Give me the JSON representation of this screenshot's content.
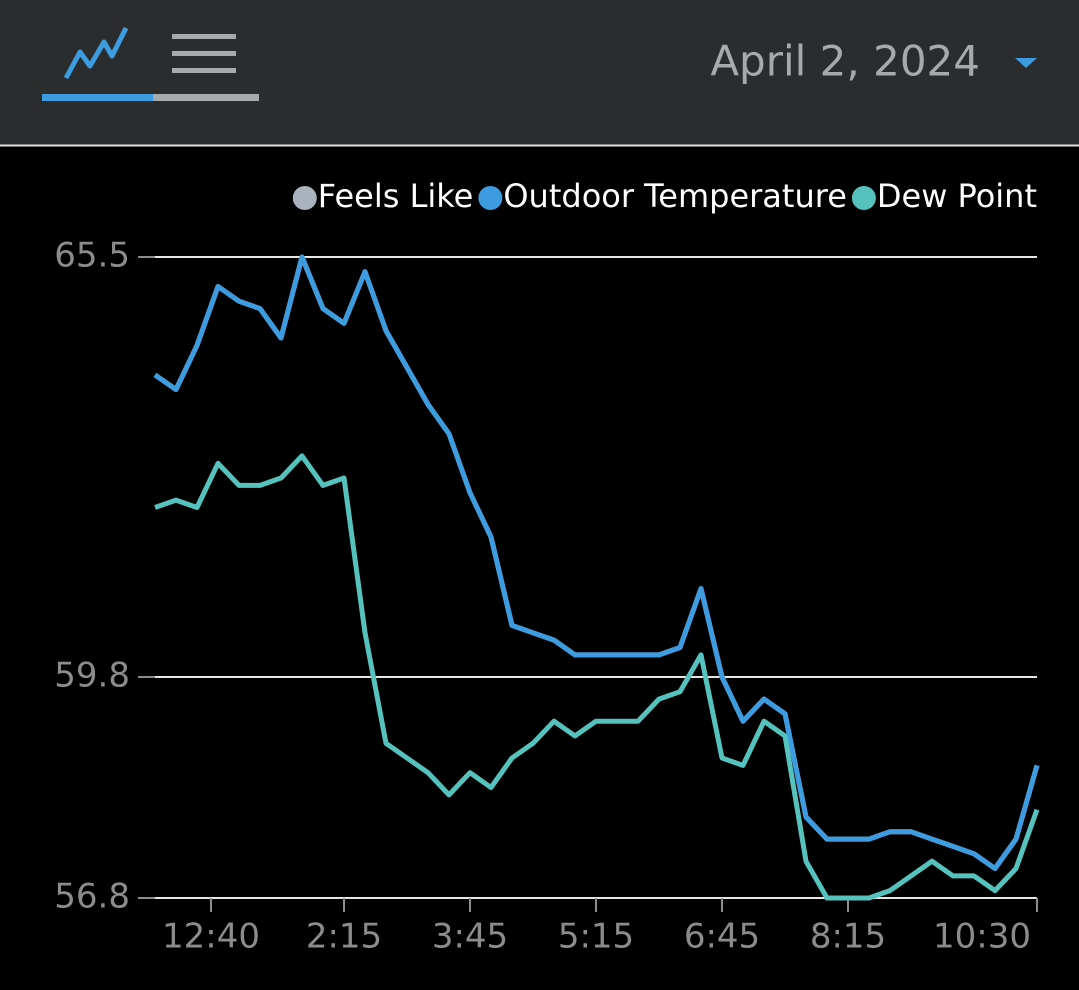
{
  "header": {
    "date": "April 2, 2024"
  },
  "chart_data": {
    "type": "line",
    "x": [
      0,
      15,
      30,
      45,
      60,
      75,
      90,
      105,
      120,
      135,
      150,
      165,
      180,
      195,
      210,
      225,
      240,
      255,
      270,
      285,
      300,
      315,
      330,
      345,
      360,
      375,
      390,
      405,
      420,
      435,
      450,
      465,
      480,
      495,
      510,
      525,
      540,
      555,
      570,
      585,
      600,
      615,
      630
    ],
    "xlim": [
      0,
      630
    ],
    "xticks": [
      {
        "value": 40,
        "label": "12:40"
      },
      {
        "value": 135,
        "label": "2:15"
      },
      {
        "value": 225,
        "label": "3:45"
      },
      {
        "value": 315,
        "label": "5:15"
      },
      {
        "value": 405,
        "label": "6:45"
      },
      {
        "value": 495,
        "label": "8:15"
      },
      {
        "value": 630,
        "label": "10:30"
      }
    ],
    "ylim": [
      56.8,
      65.5
    ],
    "yticks": [
      56.8,
      59.8,
      65.5
    ],
    "grid": true,
    "legend": "top-right",
    "series": [
      {
        "name": "Feels Like",
        "color": "#aab2bd",
        "values": [
          63.9,
          63.7,
          64.3,
          65.1,
          64.9,
          64.8,
          64.4,
          65.5,
          64.8,
          64.6,
          65.3,
          64.5,
          64.0,
          63.5,
          63.1,
          62.3,
          61.7,
          60.5,
          60.4,
          60.3,
          60.1,
          60.1,
          60.1,
          60.1,
          60.1,
          60.2,
          61.0,
          59.8,
          59.2,
          59.5,
          59.3,
          57.9,
          57.6,
          57.6,
          57.6,
          57.7,
          57.7,
          57.6,
          57.5,
          57.4,
          57.2,
          57.6,
          58.6
        ]
      },
      {
        "name": "Outdoor Temperature",
        "color": "#3d9be0",
        "values": [
          63.9,
          63.7,
          64.3,
          65.1,
          64.9,
          64.8,
          64.4,
          65.5,
          64.8,
          64.6,
          65.3,
          64.5,
          64.0,
          63.5,
          63.1,
          62.3,
          61.7,
          60.5,
          60.4,
          60.3,
          60.1,
          60.1,
          60.1,
          60.1,
          60.1,
          60.2,
          61.0,
          59.8,
          59.2,
          59.5,
          59.3,
          57.9,
          57.6,
          57.6,
          57.6,
          57.7,
          57.7,
          57.6,
          57.5,
          57.4,
          57.2,
          57.6,
          58.6
        ]
      },
      {
        "name": "Dew Point",
        "color": "#55c2bd",
        "values": [
          62.1,
          62.2,
          62.1,
          62.7,
          62.4,
          62.4,
          62.5,
          62.8,
          62.4,
          62.5,
          60.4,
          58.9,
          58.7,
          58.5,
          58.2,
          58.5,
          58.3,
          58.7,
          58.9,
          59.2,
          59.0,
          59.2,
          59.2,
          59.2,
          59.5,
          59.6,
          60.1,
          58.7,
          58.6,
          59.2,
          59.0,
          57.3,
          56.8,
          56.8,
          56.8,
          56.9,
          57.1,
          57.3,
          57.1,
          57.1,
          56.9,
          57.2,
          58.0
        ]
      }
    ]
  }
}
